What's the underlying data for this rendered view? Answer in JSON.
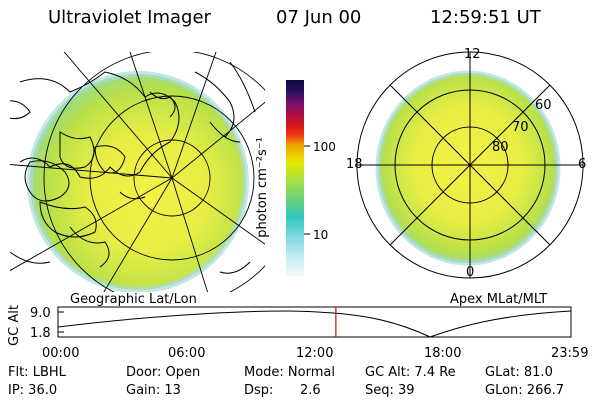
{
  "header": {
    "title": "Ultraviolet Imager",
    "date": "07 Jun 00",
    "time": "12:59:51 UT"
  },
  "colorbar": {
    "unit_label": "photon cm⁻²s⁻¹",
    "tick_100": "100",
    "tick_10": "10"
  },
  "panels": {
    "geographic_label": "Geographic Lat/Lon",
    "apex_label": "Apex MLat/MLT",
    "mlt_labels": {
      "top": "12",
      "left": "18",
      "right": "6",
      "bottom": "0"
    },
    "mlat_labels": [
      "60",
      "70",
      "80"
    ]
  },
  "altitude": {
    "axis_label": "GC Alt",
    "ytick_high": "9.0",
    "ytick_low": "1.8",
    "x_labels": [
      "00:00",
      "06:00",
      "12:00",
      "18:00",
      "23:59"
    ],
    "current_time_hours": 13.0
  },
  "status": {
    "flt": "Flt: LBHL",
    "ip": "IP: 36.0",
    "door": "Door: Open",
    "gain": "Gain: 13",
    "mode": "Mode: Normal",
    "dsp_label": "Dsp:",
    "dsp_value": "2.6",
    "gcalt": "GC Alt: 7.4 Re",
    "seq": "Seq: 39",
    "glat": "GLat:  81.0",
    "glon": "GLon: 266.7"
  },
  "colors": {
    "accent_red": "#e00000",
    "aurora_green": "#c8e84a",
    "aurora_yellow": "#f2f040"
  }
}
